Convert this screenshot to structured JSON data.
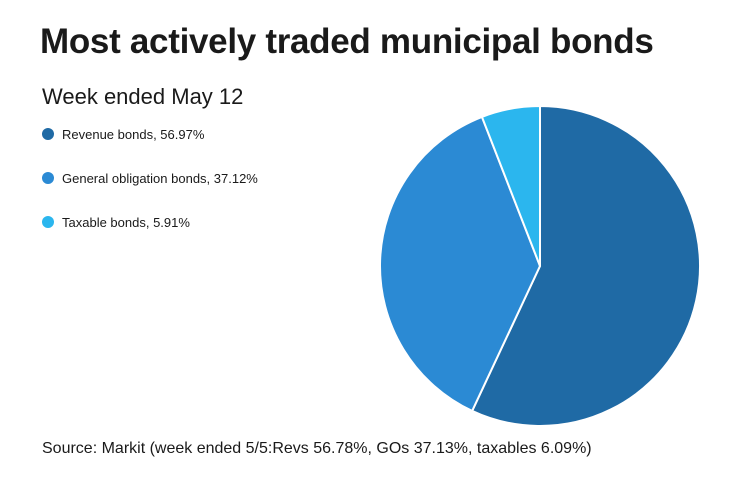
{
  "title": "Most actively traded municipal bonds",
  "subtitle": "Week ended May 12",
  "source": "Source: Markit (week ended 5/5:Revs 56.78%, GOs 37.13%, taxables 6.09%)",
  "chart_data": {
    "type": "pie",
    "categories": [
      "Revenue bonds",
      "General obligation bonds",
      "Taxable bonds"
    ],
    "values": [
      56.97,
      37.12,
      5.91
    ],
    "legend_labels": [
      "Revenue bonds, 56.97%",
      "General obligation bonds, 37.12%",
      "Taxable bonds, 5.91%"
    ],
    "colors": [
      "#1f6aa5",
      "#2b8ad4",
      "#2bb6ee"
    ],
    "legend_position": "left",
    "start_angle": "top, clockwise"
  }
}
